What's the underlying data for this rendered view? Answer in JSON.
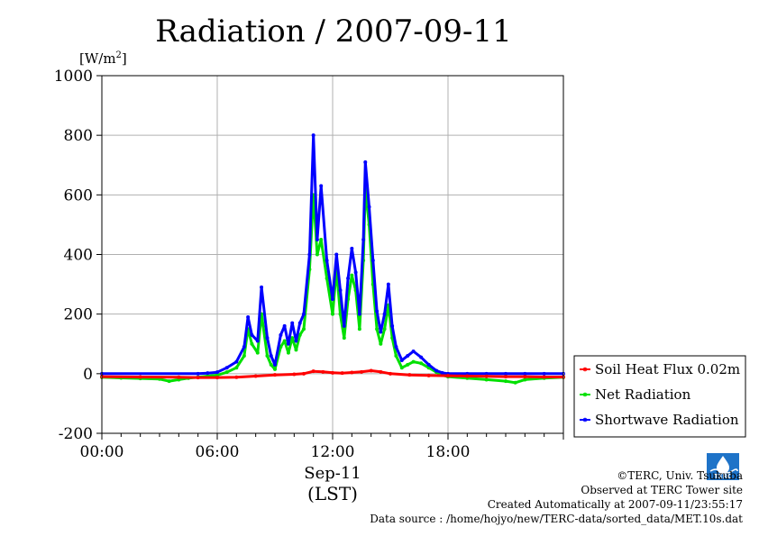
{
  "chart_data": {
    "type": "line",
    "title": "Radiation / 2007-09-11",
    "unit_label_prefix": "[W/m",
    "unit_label_sup": "2",
    "unit_label_suffix": "]",
    "xlabel_date": "Sep-11",
    "xlabel_tz": "(LST)",
    "x_unit": "hours (LST)",
    "xlim": [
      0,
      24
    ],
    "ylim": [
      -200,
      1000
    ],
    "yticks": [
      -200,
      0,
      200,
      400,
      600,
      800,
      1000
    ],
    "ytick_labels": [
      "-200",
      "0",
      "200",
      "400",
      "600",
      "800",
      "1000"
    ],
    "xticks": [
      0,
      6,
      12,
      18
    ],
    "xtick_labels": [
      "00:00",
      "06:00",
      "12:00",
      "18:00"
    ],
    "grid": true,
    "legend_position": "right, outside plot",
    "series": [
      {
        "name": "Soil Heat Flux 0.02m",
        "color": "#ff0000",
        "x": [
          0,
          2,
          4,
          5,
          6,
          7,
          8,
          9,
          10,
          10.5,
          11,
          11.5,
          12,
          12.5,
          13,
          13.5,
          14,
          14.5,
          15,
          16,
          17,
          18,
          19,
          20,
          21,
          22,
          23,
          24
        ],
        "values": [
          -10,
          -11,
          -12,
          -13,
          -13,
          -12,
          -8,
          -4,
          -2,
          0,
          8,
          6,
          3,
          2,
          4,
          6,
          10,
          6,
          0,
          -4,
          -6,
          -7,
          -8,
          -9,
          -10,
          -10,
          -11,
          -11
        ]
      },
      {
        "name": "Net Radiation",
        "color": "#00e000",
        "x": [
          0,
          1,
          2,
          3,
          3.5,
          4,
          4.5,
          5,
          5.5,
          6,
          6.5,
          7,
          7.4,
          7.6,
          7.8,
          8.1,
          8.3,
          8.6,
          8.8,
          9.0,
          9.3,
          9.5,
          9.7,
          9.9,
          10.1,
          10.3,
          10.5,
          10.8,
          11.0,
          11.2,
          11.4,
          11.7,
          12.0,
          12.2,
          12.4,
          12.6,
          12.8,
          13.0,
          13.2,
          13.4,
          13.6,
          13.7,
          13.9,
          14.1,
          14.3,
          14.5,
          14.7,
          14.9,
          15.1,
          15.3,
          15.6,
          15.9,
          16.2,
          16.6,
          17.0,
          17.4,
          17.7,
          18.0,
          19,
          20,
          21,
          21.5,
          22,
          23,
          24
        ],
        "values": [
          -12,
          -14,
          -16,
          -18,
          -25,
          -20,
          -15,
          -12,
          -8,
          -5,
          5,
          20,
          60,
          150,
          100,
          70,
          200,
          60,
          30,
          15,
          90,
          110,
          70,
          120,
          80,
          130,
          150,
          350,
          600,
          400,
          450,
          320,
          200,
          350,
          200,
          120,
          250,
          330,
          280,
          150,
          380,
          620,
          500,
          300,
          150,
          100,
          150,
          230,
          120,
          60,
          20,
          30,
          40,
          35,
          20,
          5,
          -5,
          -10,
          -15,
          -20,
          -25,
          -30,
          -20,
          -15,
          -12
        ]
      },
      {
        "name": "Shortwave Radiation",
        "color": "#0000ff",
        "x": [
          0,
          5,
          5.5,
          6,
          6.5,
          7,
          7.4,
          7.6,
          7.8,
          8.1,
          8.3,
          8.6,
          8.8,
          9.0,
          9.3,
          9.5,
          9.7,
          9.9,
          10.1,
          10.3,
          10.5,
          10.8,
          11.0,
          11.2,
          11.4,
          11.7,
          12.0,
          12.2,
          12.4,
          12.6,
          12.8,
          13.0,
          13.2,
          13.4,
          13.6,
          13.7,
          13.9,
          14.1,
          14.3,
          14.5,
          14.7,
          14.9,
          15.1,
          15.3,
          15.6,
          15.9,
          16.2,
          16.6,
          17.0,
          17.4,
          17.7,
          18.0,
          19,
          20,
          21,
          22,
          23,
          24
        ],
        "values": [
          0,
          0,
          2,
          5,
          20,
          40,
          90,
          190,
          130,
          110,
          290,
          120,
          60,
          30,
          130,
          160,
          100,
          170,
          110,
          170,
          200,
          400,
          800,
          450,
          630,
          380,
          250,
          400,
          280,
          160,
          320,
          420,
          340,
          200,
          450,
          710,
          560,
          380,
          210,
          140,
          200,
          300,
          160,
          90,
          45,
          60,
          75,
          55,
          30,
          10,
          3,
          0,
          0,
          0,
          0,
          0,
          0,
          0
        ]
      }
    ]
  },
  "credits": {
    "copyright": "©TERC, Univ. Tsukuba",
    "site": "Observed at TERC Tower site",
    "created": "Created Automatically at 2007-09-11/23:55:17",
    "source": "Data source : /home/hojyo/new/TERC-data/sorted_data/MET.10s.dat"
  },
  "logo_text": "TERC"
}
